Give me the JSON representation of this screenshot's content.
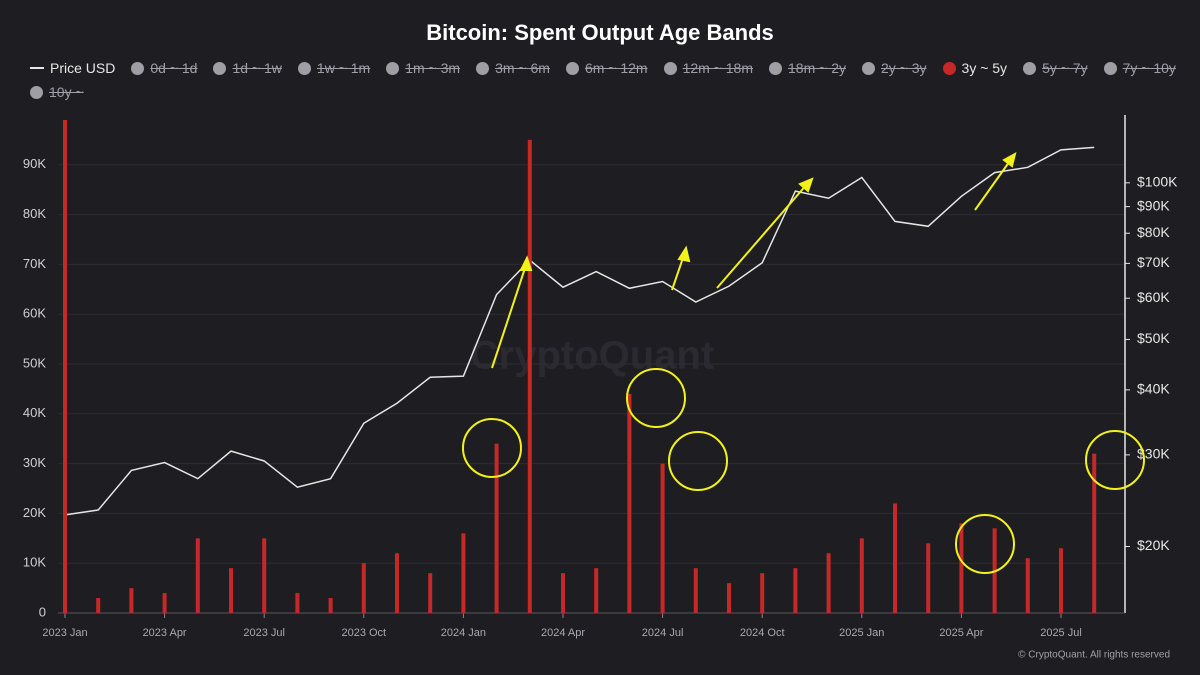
{
  "chart_data": {
    "type": "bar",
    "title": "Bitcoin: Spent Output Age Bands",
    "watermark": "CryptoQuant",
    "credit": "© CryptoQuant. All rights reserved",
    "x": [
      "2023-01",
      "2023-02",
      "2023-03",
      "2023-04",
      "2023-05",
      "2023-06",
      "2023-07",
      "2023-08",
      "2023-09",
      "2023-10",
      "2023-11",
      "2023-12",
      "2024-01",
      "2024-02",
      "2024-03",
      "2024-04",
      "2024-05",
      "2024-06",
      "2024-07",
      "2024-08",
      "2024-09",
      "2024-10",
      "2024-11",
      "2024-12",
      "2025-01",
      "2025-02",
      "2025-03",
      "2025-04",
      "2025-05",
      "2025-06",
      "2025-07",
      "2025-08"
    ],
    "xticks": [
      {
        "value": "2023-01",
        "label": "2023 Jan"
      },
      {
        "value": "2023-04",
        "label": "2023 Apr"
      },
      {
        "value": "2023-07",
        "label": "2023 Jul"
      },
      {
        "value": "2023-10",
        "label": "2023 Oct"
      },
      {
        "value": "2024-01",
        "label": "2024 Jan"
      },
      {
        "value": "2024-04",
        "label": "2024 Apr"
      },
      {
        "value": "2024-07",
        "label": "2024 Jul"
      },
      {
        "value": "2024-10",
        "label": "2024 Oct"
      },
      {
        "value": "2025-01",
        "label": "2025 Jan"
      },
      {
        "value": "2025-04",
        "label": "2025 Apr"
      },
      {
        "value": "2025-07",
        "label": "2025 Jul"
      }
    ],
    "ylim": [
      0,
      100000
    ],
    "yticks": [
      {
        "value": 0,
        "label": "0"
      },
      {
        "value": 10000,
        "label": "10K"
      },
      {
        "value": 20000,
        "label": "20K"
      },
      {
        "value": 30000,
        "label": "30K"
      },
      {
        "value": 40000,
        "label": "40K"
      },
      {
        "value": 50000,
        "label": "50K"
      },
      {
        "value": 60000,
        "label": "60K"
      },
      {
        "value": 70000,
        "label": "70K"
      },
      {
        "value": 80000,
        "label": "80K"
      },
      {
        "value": 90000,
        "label": "90K"
      }
    ],
    "y2lim": [
      14900,
      135000
    ],
    "y2_log": true,
    "y2ticks": [
      {
        "value": 20000,
        "label": "$20K"
      },
      {
        "value": 30000,
        "label": "$30K"
      },
      {
        "value": 40000,
        "label": "$40K"
      },
      {
        "value": 50000,
        "label": "$50K"
      },
      {
        "value": 60000,
        "label": "$60K"
      },
      {
        "value": 70000,
        "label": "$70K"
      },
      {
        "value": 80000,
        "label": "$80K"
      },
      {
        "value": 90000,
        "label": "$90K"
      },
      {
        "value": 100000,
        "label": "$100K"
      }
    ],
    "grid": true,
    "series": [
      {
        "name": "Price USD",
        "color": "#e6e6e6",
        "type": "line",
        "axis": "y2",
        "visible": true,
        "values": [
          23000,
          23500,
          28000,
          29000,
          27000,
          30500,
          29200,
          26000,
          27000,
          34500,
          37700,
          42300,
          42500,
          61000,
          71000,
          63000,
          67500,
          62700,
          64600,
          59000,
          63300,
          70200,
          96400,
          93400,
          102400,
          84300,
          82500,
          94200,
          104600,
          107100,
          115700,
          117000
        ]
      },
      {
        "name": "0d ~ 1d",
        "color": "#9e9ea4",
        "visible": false
      },
      {
        "name": "1d ~ 1w",
        "color": "#9e9ea4",
        "visible": false
      },
      {
        "name": "1w ~ 1m",
        "color": "#9e9ea4",
        "visible": false
      },
      {
        "name": "1m ~ 3m",
        "color": "#9e9ea4",
        "visible": false
      },
      {
        "name": "3m ~ 6m",
        "color": "#9e9ea4",
        "visible": false
      },
      {
        "name": "6m ~ 12m",
        "color": "#9e9ea4",
        "visible": false
      },
      {
        "name": "12m ~ 18m",
        "color": "#9e9ea4",
        "visible": false
      },
      {
        "name": "18m ~ 2y",
        "color": "#9e9ea4",
        "visible": false
      },
      {
        "name": "2y ~ 3y",
        "color": "#9e9ea4",
        "visible": false
      },
      {
        "name": "3y ~ 5y",
        "color": "#c62828",
        "type": "bar",
        "visible": true,
        "values": [
          99000,
          3000,
          5000,
          4000,
          15000,
          9000,
          15000,
          4000,
          3000,
          10000,
          12000,
          8000,
          16000,
          34000,
          95000,
          8000,
          9000,
          44000,
          30000,
          9000,
          6000,
          8000,
          9000,
          12000,
          15000,
          22000,
          14000,
          18000,
          17000,
          11000,
          13000,
          32000
        ]
      },
      {
        "name": "5y ~ 7y",
        "color": "#9e9ea4",
        "visible": false
      },
      {
        "name": "7y ~ 10y",
        "color": "#9e9ea4",
        "visible": false
      },
      {
        "name": "10y ~",
        "color": "#9e9ea4",
        "visible": false
      }
    ]
  }
}
